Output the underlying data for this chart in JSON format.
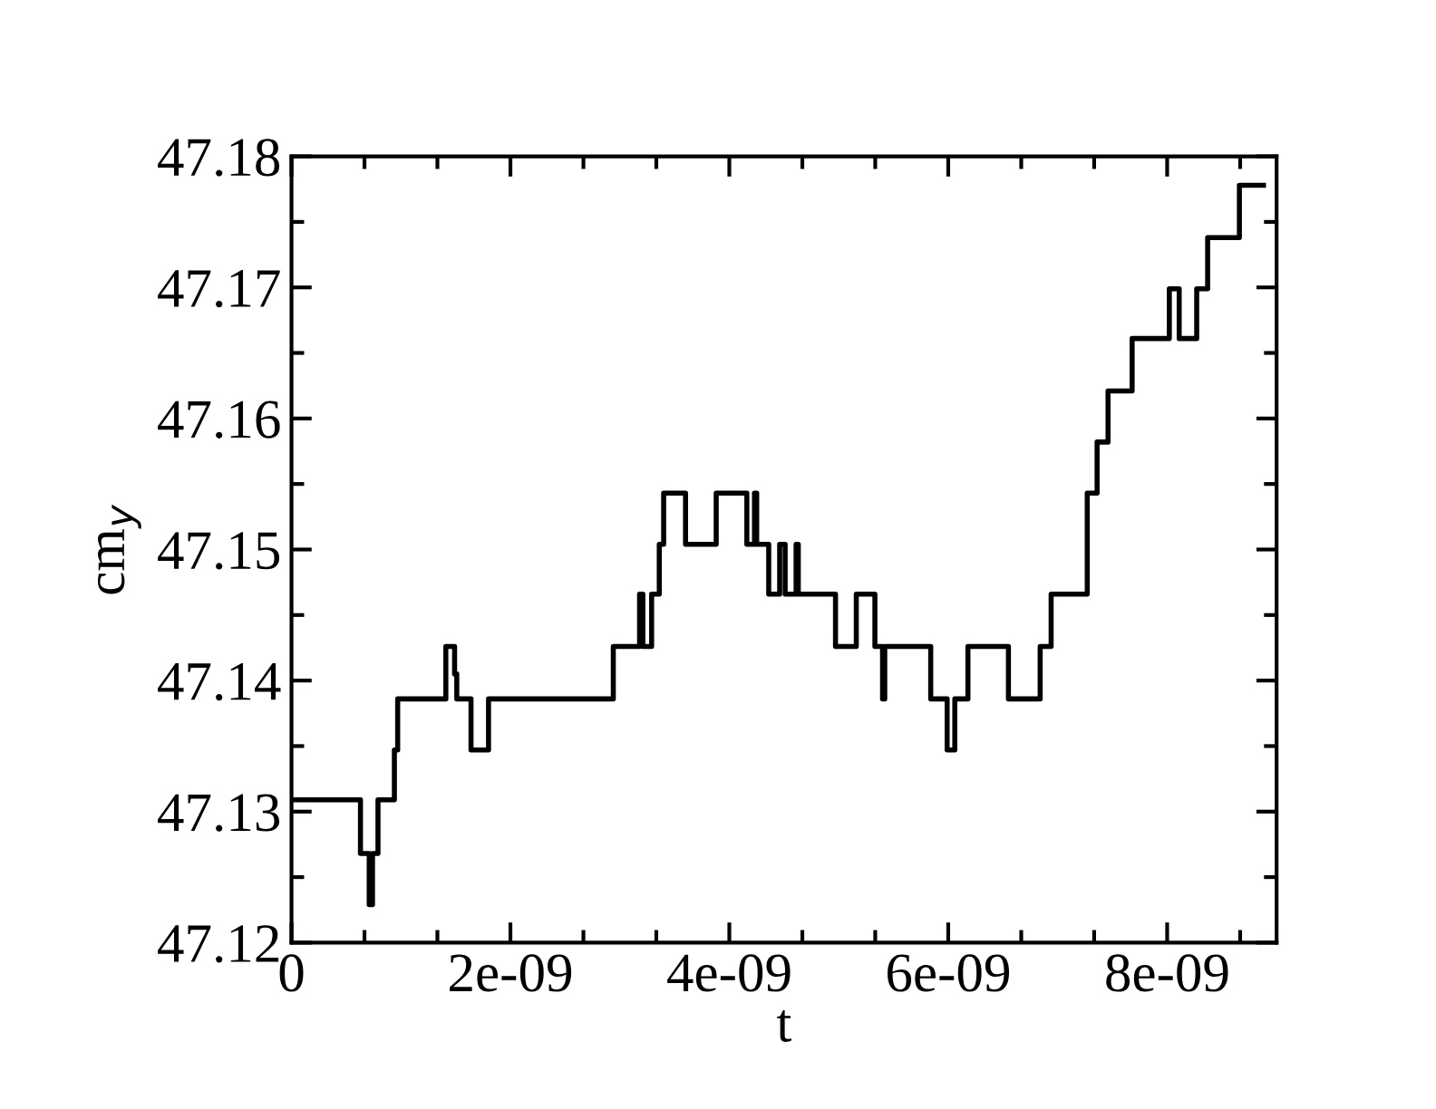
{
  "chart_data": {
    "type": "step",
    "xlabel": "t",
    "ylabel": "cm$_{y}$",
    "x": [
      0,
      6.3e-10,
      7.1e-10,
      7.4e-10,
      7.9e-10,
      9.4e-10,
      9.7e-10,
      1.41e-09,
      1.49e-09,
      1.51e-09,
      1.64e-09,
      1.8e-09,
      2.94e-09,
      3.18e-09,
      3.21e-09,
      3.29e-09,
      3.36e-09,
      3.4e-09,
      3.6e-09,
      3.88e-09,
      4.16e-09,
      4.23e-09,
      4.25e-09,
      4.36e-09,
      4.46e-09,
      4.51e-09,
      4.61e-09,
      4.63e-09,
      4.97e-09,
      5.16e-09,
      5.33e-09,
      5.4e-09,
      5.42e-09,
      5.84e-09,
      5.99e-09,
      6.06e-09,
      6.18e-09,
      6.55e-09,
      6.84e-09,
      6.94e-09,
      7.27e-09,
      7.36e-09,
      7.46e-09,
      7.68e-09,
      8.02e-09,
      8.11e-09,
      8.27e-09,
      8.37e-09,
      8.66e-09,
      8.88e-09
    ],
    "series": [
      {
        "color": "#000000",
        "values": [
          47.1309,
          47.1268,
          47.1229,
          47.1268,
          47.1309,
          47.1347,
          47.1386,
          47.1426,
          47.1405,
          47.1386,
          47.1347,
          47.1386,
          47.1426,
          47.1466,
          47.1426,
          47.1466,
          47.1504,
          47.1543,
          47.1504,
          47.1543,
          47.1504,
          47.1543,
          47.1504,
          47.1466,
          47.1504,
          47.1466,
          47.1504,
          47.1466,
          47.1426,
          47.1466,
          47.1426,
          47.1386,
          47.1426,
          47.1386,
          47.1347,
          47.1386,
          47.1426,
          47.1386,
          47.1426,
          47.1466,
          47.1543,
          47.1582,
          47.1621,
          47.1661,
          47.1699,
          47.1661,
          47.1699,
          47.1738,
          47.1778,
          47.1778
        ]
      }
    ],
    "xlim": [
      0,
      9e-09
    ],
    "ylim": [
      47.12,
      47.18
    ],
    "xticks": [
      {
        "value": 0,
        "label": "0"
      },
      {
        "value": 6.667e-10,
        "label": null
      },
      {
        "value": 1.333e-09,
        "label": null
      },
      {
        "value": 2e-09,
        "label": "2e-09"
      },
      {
        "value": 2.667e-09,
        "label": null
      },
      {
        "value": 3.333e-09,
        "label": null
      },
      {
        "value": 4e-09,
        "label": "4e-09"
      },
      {
        "value": 4.667e-09,
        "label": null
      },
      {
        "value": 5.333e-09,
        "label": null
      },
      {
        "value": 6e-09,
        "label": "6e-09"
      },
      {
        "value": 6.667e-09,
        "label": null
      },
      {
        "value": 7.333e-09,
        "label": null
      },
      {
        "value": 8e-09,
        "label": "8e-09"
      },
      {
        "value": 8.667e-09,
        "label": null
      }
    ],
    "yticks": [
      {
        "value": 47.12,
        "label": "47.12"
      },
      {
        "value": 47.125,
        "label": null
      },
      {
        "value": 47.13,
        "label": "47.13"
      },
      {
        "value": 47.135,
        "label": null
      },
      {
        "value": 47.14,
        "label": "47.14"
      },
      {
        "value": 47.145,
        "label": null
      },
      {
        "value": 47.15,
        "label": "47.15"
      },
      {
        "value": 47.155,
        "label": null
      },
      {
        "value": 47.16,
        "label": "47.16"
      },
      {
        "value": 47.165,
        "label": null
      },
      {
        "value": 47.17,
        "label": "47.17"
      },
      {
        "value": 47.175,
        "label": null
      },
      {
        "value": 47.18,
        "label": "47.18"
      }
    ]
  }
}
